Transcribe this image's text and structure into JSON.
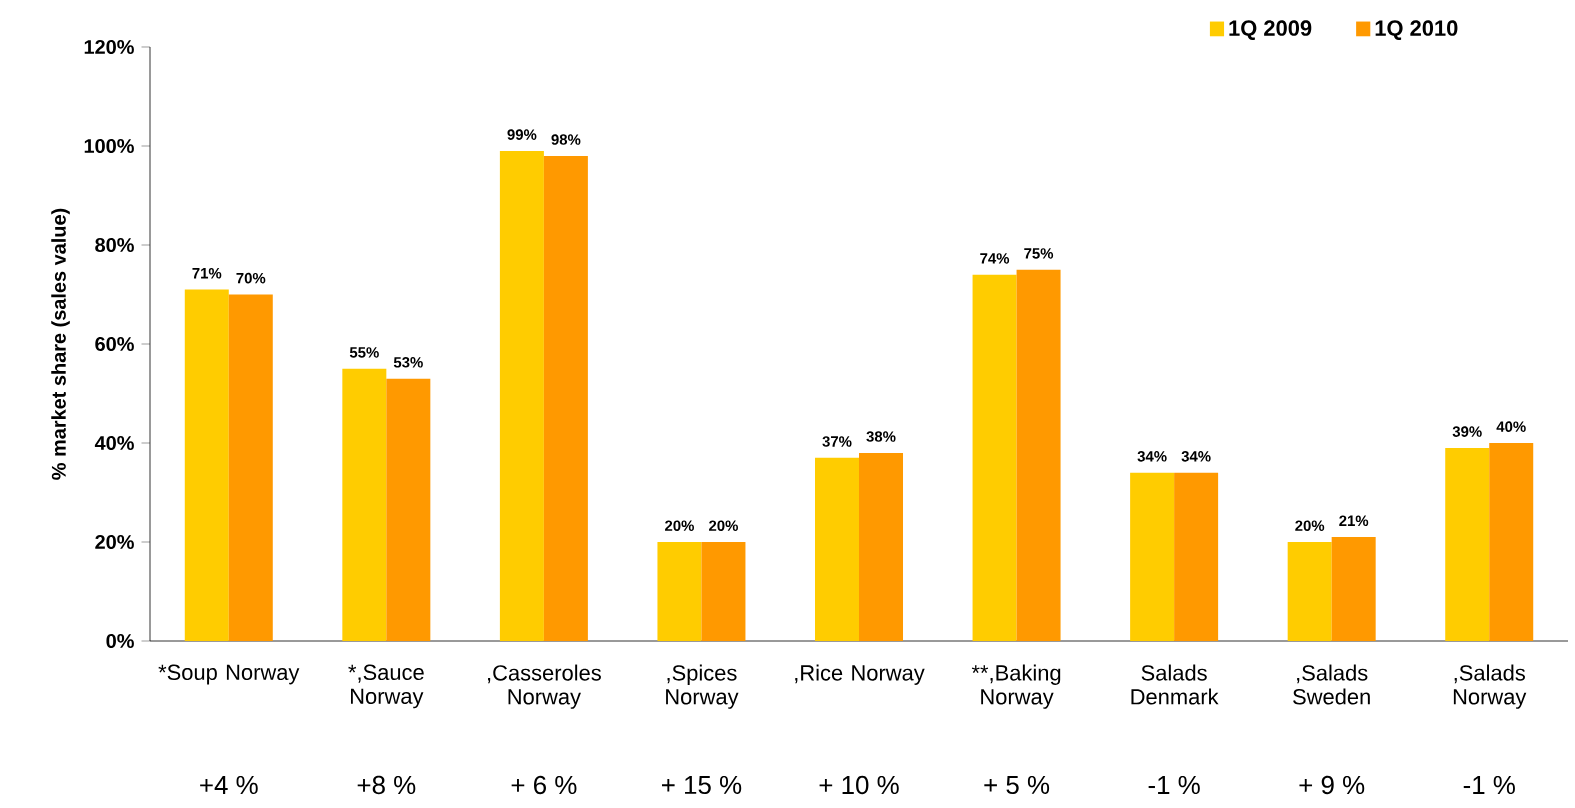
{
  "chart_data": {
    "type": "bar",
    "ylabel": "% market share (sales value)",
    "categories": [
      "*Soup Norway",
      "*,Sauce Norway",
      ",Casseroles Norway",
      ",Spices Norway",
      ",Rice Norway",
      "**,Baking Norway",
      "Salads Denmark",
      ",Salads Sweden",
      ",Salads Norway"
    ],
    "series": [
      {
        "name": "1Q 2009",
        "color": "#ffcc00",
        "values": [
          71,
          55,
          99,
          20,
          37,
          74,
          34,
          20,
          39
        ],
        "value_labels": [
          "71%",
          "55%",
          "99%",
          "20%",
          "37%",
          "74%",
          "34%",
          "20%",
          "39%"
        ]
      },
      {
        "name": "1Q 2010",
        "color": "#ff9900",
        "values": [
          70,
          53,
          98,
          20,
          38,
          75,
          34,
          21,
          40
        ],
        "value_labels": [
          "70%",
          "53%",
          "98%",
          "20%",
          "38%",
          "75%",
          "34%",
          "21%",
          "40%"
        ]
      }
    ],
    "ylim": [
      0,
      120
    ],
    "yticks": [
      {
        "value": 0,
        "label": "0%"
      },
      {
        "value": 20,
        "label": "20%"
      },
      {
        "value": 40,
        "label": "40%"
      },
      {
        "value": 60,
        "label": "60%"
      },
      {
        "value": 80,
        "label": "80%"
      },
      {
        "value": 100,
        "label": "100%"
      },
      {
        "value": 120,
        "label": "120%"
      }
    ],
    "legend": "top right",
    "grid": false,
    "annotations": [
      "+4 %",
      "+8 %",
      "+ 6 %",
      "+ 15 %",
      "+ 10 %",
      "+ 5 %",
      "-1 %",
      "+ 9 %",
      "-1 %"
    ]
  }
}
